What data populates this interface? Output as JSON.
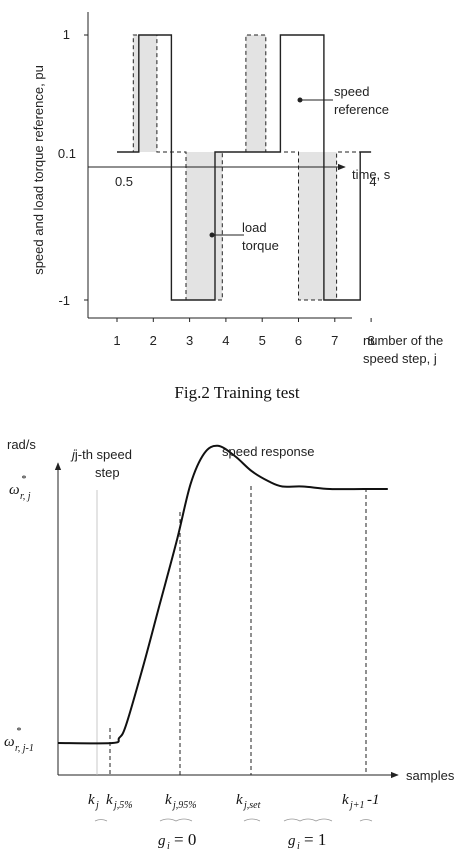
{
  "chart_data": [
    {
      "type": "line",
      "ylabel": "speed and load torque reference, pu",
      "yticks": [
        "1",
        "0.1",
        "-1"
      ],
      "top_axis_label": "time, s",
      "top_ticks": [
        "0.5",
        "4"
      ],
      "xlabel": "number of the speed step, j",
      "xlabel_line1": "number of the",
      "xlabel_line2": "speed step, j",
      "categories": [
        "1",
        "2",
        "3",
        "4",
        "5",
        "6",
        "7",
        "8"
      ],
      "series": [
        {
          "name": "speed reference",
          "label_line1": "speed",
          "label_line2": "reference",
          "style": "solid",
          "points": [
            [
              1,
              0.1
            ],
            [
              1.6,
              0.1
            ],
            [
              1.6,
              1
            ],
            [
              2.5,
              1
            ],
            [
              2.5,
              -1
            ],
            [
              3.7,
              -1
            ],
            [
              3.7,
              0.1
            ],
            [
              5.5,
              0.1
            ],
            [
              5.5,
              1
            ],
            [
              6.7,
              1
            ],
            [
              6.7,
              -1
            ],
            [
              7.7,
              -1
            ],
            [
              7.7,
              0.1
            ],
            [
              8,
              0.1
            ]
          ]
        },
        {
          "name": "load torque",
          "label_line1": "load",
          "label_line2": "torque",
          "style": "dashed",
          "points": [
            [
              1,
              0.1
            ],
            [
              1.45,
              0.1
            ],
            [
              1.45,
              1
            ],
            [
              2.1,
              1
            ],
            [
              2.1,
              0.1
            ],
            [
              2.9,
              0.1
            ],
            [
              2.9,
              -1
            ],
            [
              3.9,
              -1
            ],
            [
              3.9,
              0.1
            ],
            [
              4.55,
              0.1
            ],
            [
              4.55,
              1
            ],
            [
              5.1,
              1
            ],
            [
              5.1,
              0.1
            ],
            [
              6.0,
              0.1
            ],
            [
              6.0,
              -1
            ],
            [
              7.05,
              -1
            ],
            [
              7.05,
              0.1
            ],
            [
              8,
              0.1
            ]
          ]
        }
      ],
      "shaded_regions": [
        {
          "x": [
            1.45,
            2.1
          ],
          "y": [
            0.1,
            1
          ]
        },
        {
          "x": [
            2.9,
            3.9
          ],
          "y": [
            -1,
            0.1
          ]
        },
        {
          "x": [
            4.55,
            5.1
          ],
          "y": [
            0.1,
            1
          ]
        },
        {
          "x": [
            6.0,
            7.05
          ],
          "y": [
            -1,
            0.1
          ]
        }
      ]
    },
    {
      "type": "line",
      "ylabel": "rad/s",
      "xlabel": "samples",
      "ytick_main": "ω",
      "ytick_top_sup": "*",
      "ytick_top_sub": "r, j",
      "ytick_bottom_sub": "r, j-1",
      "annotation_step": "j-th speed",
      "annotation_step_2": "step",
      "annotation_response": "speed response",
      "xtick_main": "k",
      "xticks_sub": [
        "j",
        "j,5%",
        "j,95%",
        "j,set",
        "j+1"
      ],
      "xtick_last_suffix": "-1",
      "g_main": "g",
      "g_sub": "i",
      "g_labels": [
        "= 0",
        "= 1"
      ],
      "series": [
        {
          "name": "speed response",
          "points": [
            [
              0,
              0
            ],
            [
              0.16,
              0
            ],
            [
              0.18,
              0.02
            ],
            [
              0.2,
              0.07
            ],
            [
              0.25,
              0.3
            ],
            [
              0.3,
              0.55
            ],
            [
              0.35,
              0.8
            ],
            [
              0.39,
              1.02
            ],
            [
              0.43,
              1.14
            ],
            [
              0.47,
              1.17
            ],
            [
              0.52,
              1.13
            ],
            [
              0.57,
              1.07
            ],
            [
              0.62,
              1.03
            ],
            [
              0.66,
              1.01
            ],
            [
              0.72,
              1.01
            ],
            [
              0.8,
              1.0
            ],
            [
              0.9,
              1.0
            ],
            [
              0.97,
              1.0
            ]
          ]
        }
      ]
    }
  ],
  "caption_fig2": "Fig.2 Training test"
}
